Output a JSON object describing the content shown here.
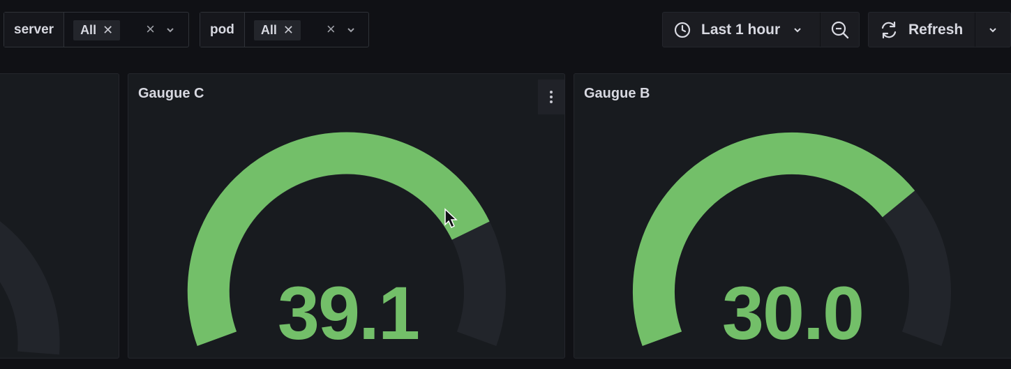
{
  "variables": [
    {
      "label": "server",
      "selected": "All"
    },
    {
      "label": "pod",
      "selected": "All"
    }
  ],
  "time_picker": {
    "label": "Last 1 hour",
    "icon": "clock-icon"
  },
  "zoom_out": {
    "icon": "zoom-out-icon"
  },
  "refresh": {
    "label": "Refresh",
    "icon": "refresh-icon"
  },
  "panels": [
    {
      "title": "Gaugue C",
      "value": "39.1",
      "fraction": 0.79
    },
    {
      "title": "Gaugue B",
      "value": "30.0",
      "fraction": 0.73
    }
  ],
  "colors": {
    "gauge": "#73bf69",
    "track": "#22252b",
    "background": "#101115",
    "panel": "#181b1f"
  }
}
